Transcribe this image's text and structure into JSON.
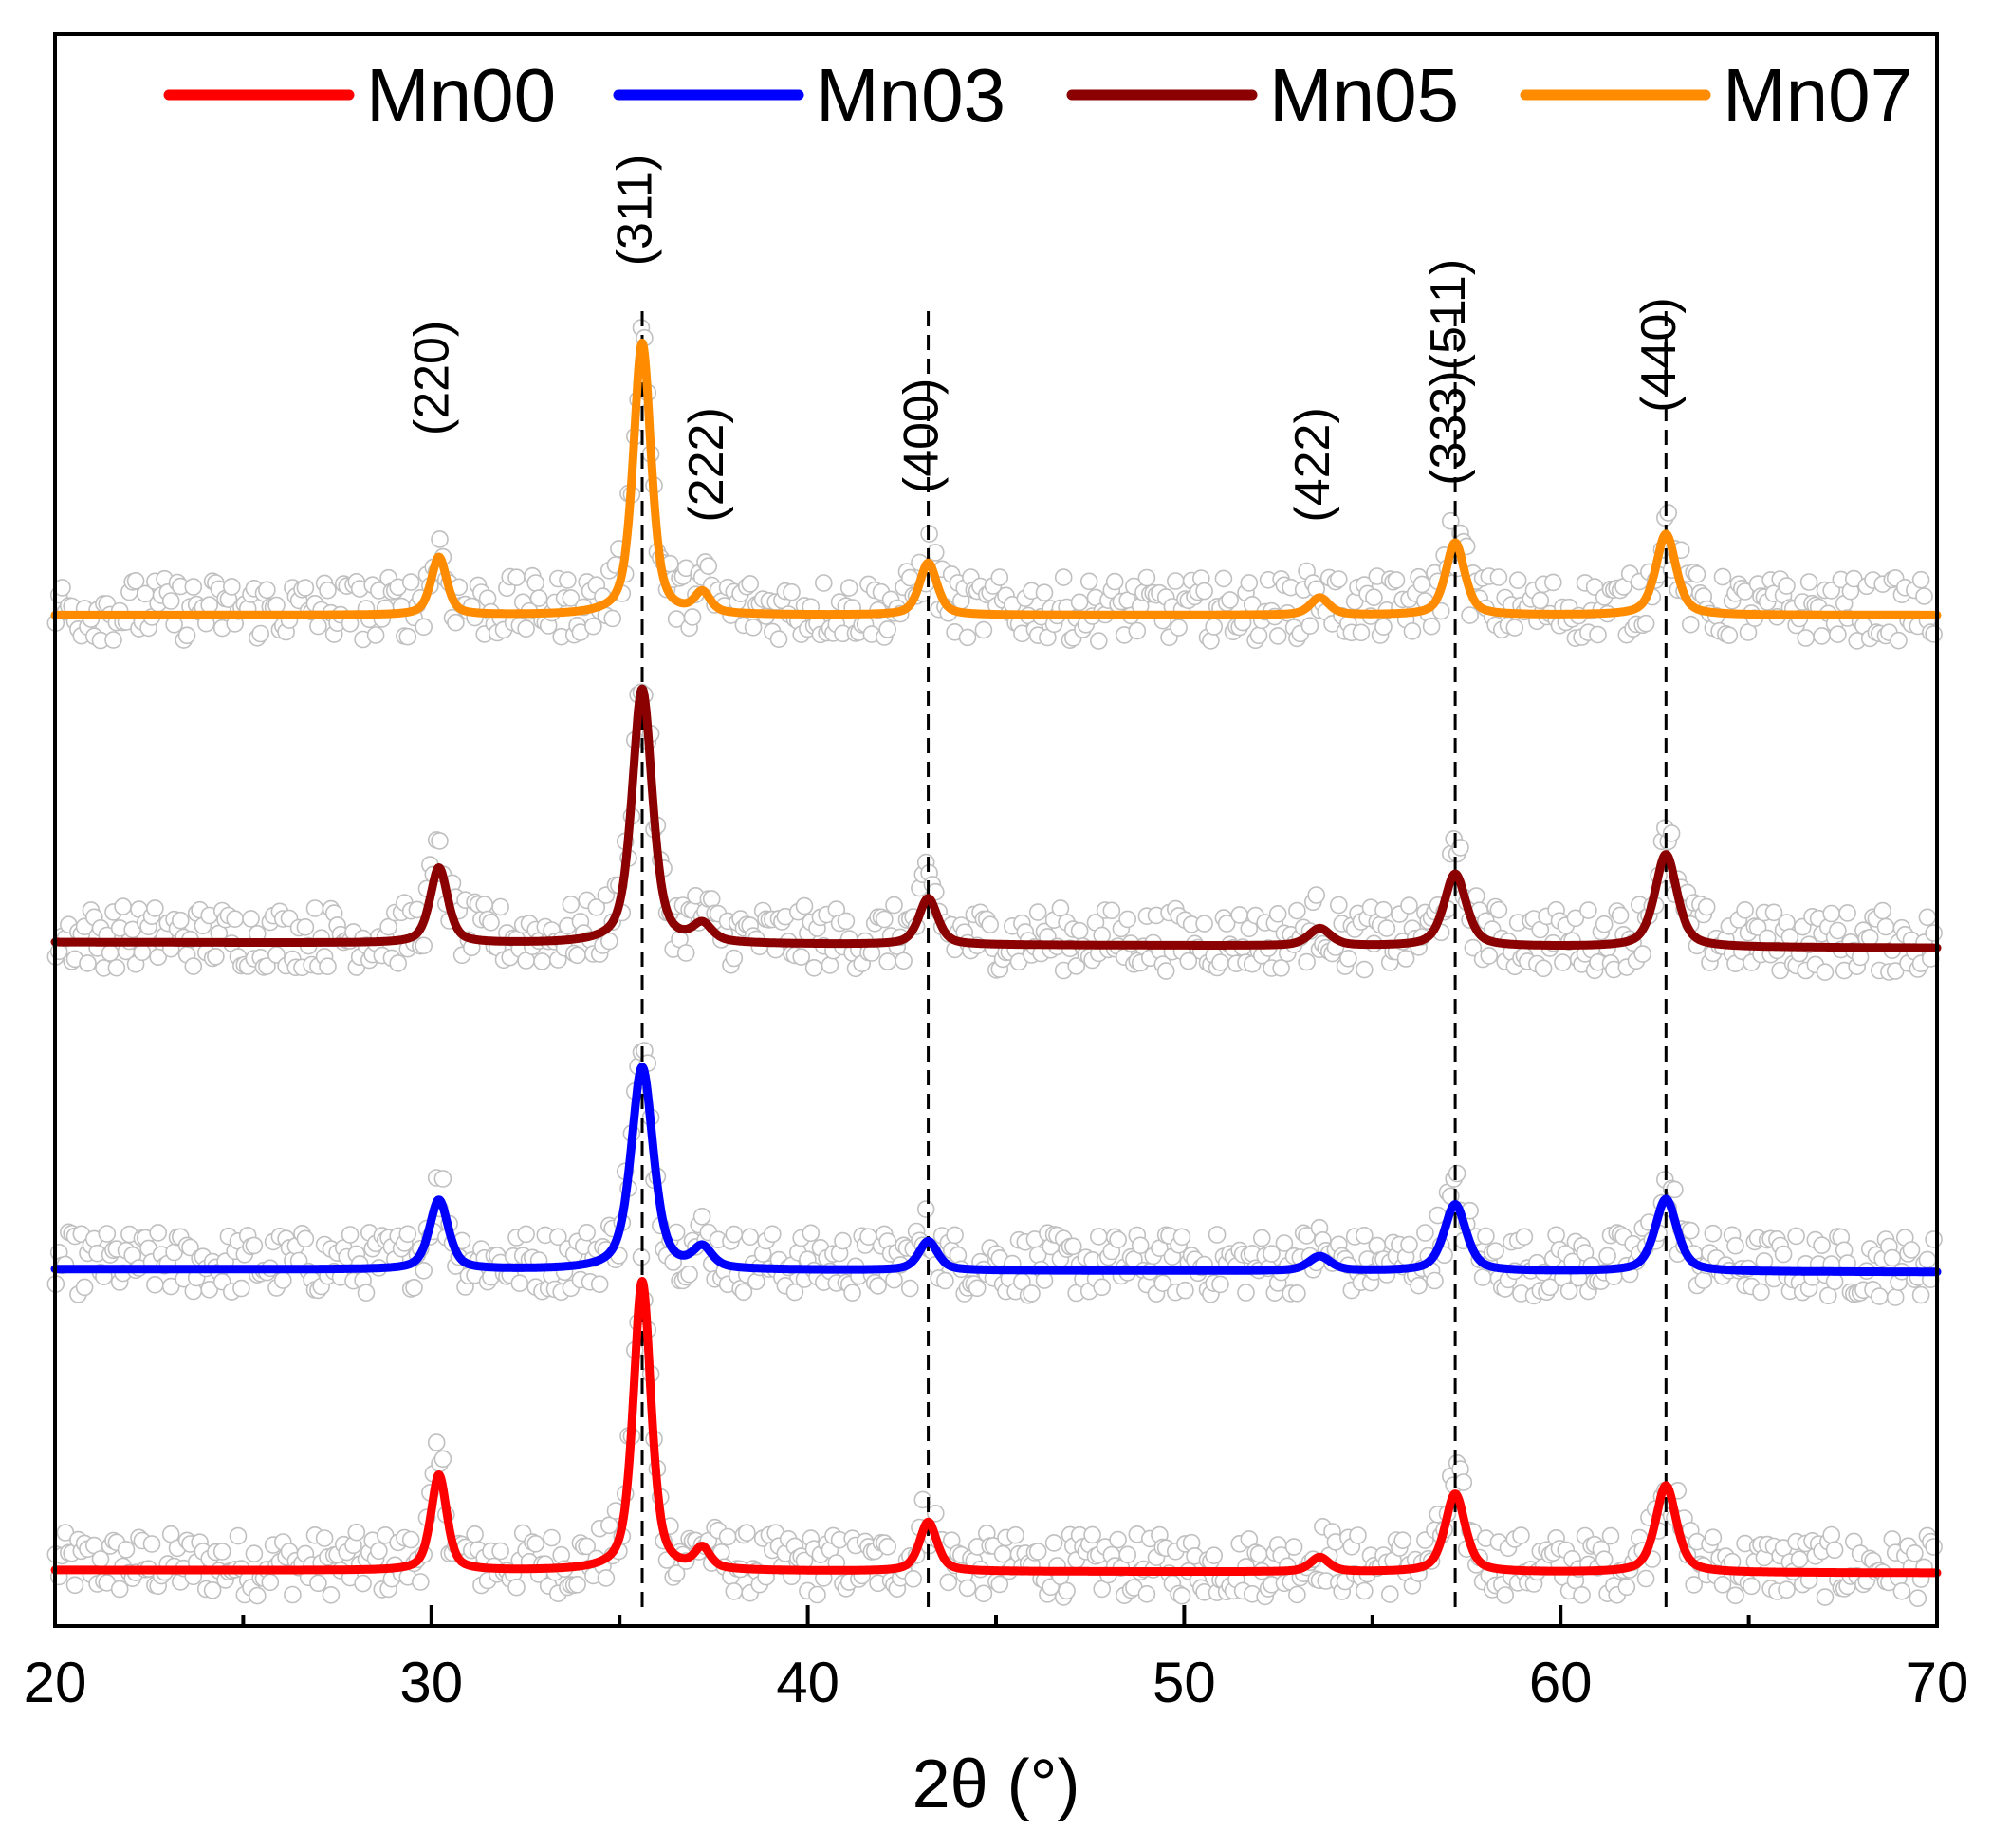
{
  "chart_data": {
    "type": "line",
    "title": "",
    "xlabel": "2θ (°)",
    "ylabel": "",
    "xlim": [
      20,
      70
    ],
    "xticks": [
      20,
      30,
      40,
      50,
      60,
      70
    ],
    "xtick_labels": [
      "20",
      "30",
      "40",
      "50",
      "60",
      "70"
    ],
    "minor_xticks": [
      25,
      35,
      45,
      55,
      65
    ],
    "y_ticks_visible": false,
    "legend": {
      "position": "top",
      "entries": [
        "Mn00",
        "Mn03",
        "Mn05",
        "Mn07"
      ]
    },
    "series": [
      {
        "name": "Mn00",
        "color": "#ff0000",
        "baseline": 0.0,
        "slope": -0.01,
        "peaks": [
          {
            "x": 30.2,
            "h": 0.33,
            "w": 0.25
          },
          {
            "x": 35.6,
            "h": 1.0,
            "w": 0.28
          },
          {
            "x": 37.2,
            "h": 0.07,
            "w": 0.25
          },
          {
            "x": 43.2,
            "h": 0.17,
            "w": 0.28
          },
          {
            "x": 53.6,
            "h": 0.05,
            "w": 0.3
          },
          {
            "x": 57.2,
            "h": 0.27,
            "w": 0.32
          },
          {
            "x": 62.8,
            "h": 0.3,
            "w": 0.33
          }
        ]
      },
      {
        "name": "Mn03",
        "color": "#0000ff",
        "baseline": 1.04,
        "slope": -0.01,
        "peaks": [
          {
            "x": 30.2,
            "h": 0.24,
            "w": 0.3
          },
          {
            "x": 35.6,
            "h": 0.7,
            "w": 0.35
          },
          {
            "x": 37.2,
            "h": 0.07,
            "w": 0.3
          },
          {
            "x": 43.2,
            "h": 0.1,
            "w": 0.3
          },
          {
            "x": 53.6,
            "h": 0.05,
            "w": 0.35
          },
          {
            "x": 57.2,
            "h": 0.23,
            "w": 0.35
          },
          {
            "x": 62.8,
            "h": 0.25,
            "w": 0.35
          }
        ]
      },
      {
        "name": "Mn05",
        "color": "#8b0000",
        "baseline": 2.17,
        "slope": -0.02,
        "peaks": [
          {
            "x": 30.2,
            "h": 0.26,
            "w": 0.28
          },
          {
            "x": 35.6,
            "h": 0.88,
            "w": 0.32
          },
          {
            "x": 37.2,
            "h": 0.06,
            "w": 0.3
          },
          {
            "x": 43.2,
            "h": 0.16,
            "w": 0.3
          },
          {
            "x": 53.6,
            "h": 0.06,
            "w": 0.35
          },
          {
            "x": 57.2,
            "h": 0.25,
            "w": 0.35
          },
          {
            "x": 62.8,
            "h": 0.32,
            "w": 0.35
          }
        ]
      },
      {
        "name": "Mn07",
        "color": "#ff8c00",
        "baseline": 3.3,
        "slope": 0.0,
        "peaks": [
          {
            "x": 30.2,
            "h": 0.2,
            "w": 0.25
          },
          {
            "x": 35.6,
            "h": 0.94,
            "w": 0.28
          },
          {
            "x": 37.2,
            "h": 0.07,
            "w": 0.25
          },
          {
            "x": 43.2,
            "h": 0.18,
            "w": 0.28
          },
          {
            "x": 53.6,
            "h": 0.06,
            "w": 0.3
          },
          {
            "x": 57.2,
            "h": 0.25,
            "w": 0.3
          },
          {
            "x": 62.8,
            "h": 0.28,
            "w": 0.32
          }
        ]
      }
    ],
    "experimental_points": {
      "color": "#c0c0c0",
      "marker": "open-circle",
      "noise_amplitude": 0.11
    },
    "reference_lines": [
      {
        "x": 35.6,
        "style": "dashed"
      },
      {
        "x": 43.2,
        "style": "dashed"
      },
      {
        "x": 57.2,
        "style": "dashed"
      },
      {
        "x": 62.8,
        "style": "dashed"
      }
    ],
    "annotations": [
      {
        "text": "(220)",
        "x": 30.2,
        "y": 4.12
      },
      {
        "text": "(311)",
        "x": 35.6,
        "y": 4.7
      },
      {
        "text": "(222)",
        "x": 37.5,
        "y": 3.82
      },
      {
        "text": "(400)",
        "x": 43.2,
        "y": 3.92
      },
      {
        "text": "(422)",
        "x": 53.6,
        "y": 3.82
      },
      {
        "text": "(333)(511)",
        "x": 57.2,
        "y": 4.14
      },
      {
        "text": "(440)",
        "x": 62.8,
        "y": 4.2
      }
    ]
  }
}
